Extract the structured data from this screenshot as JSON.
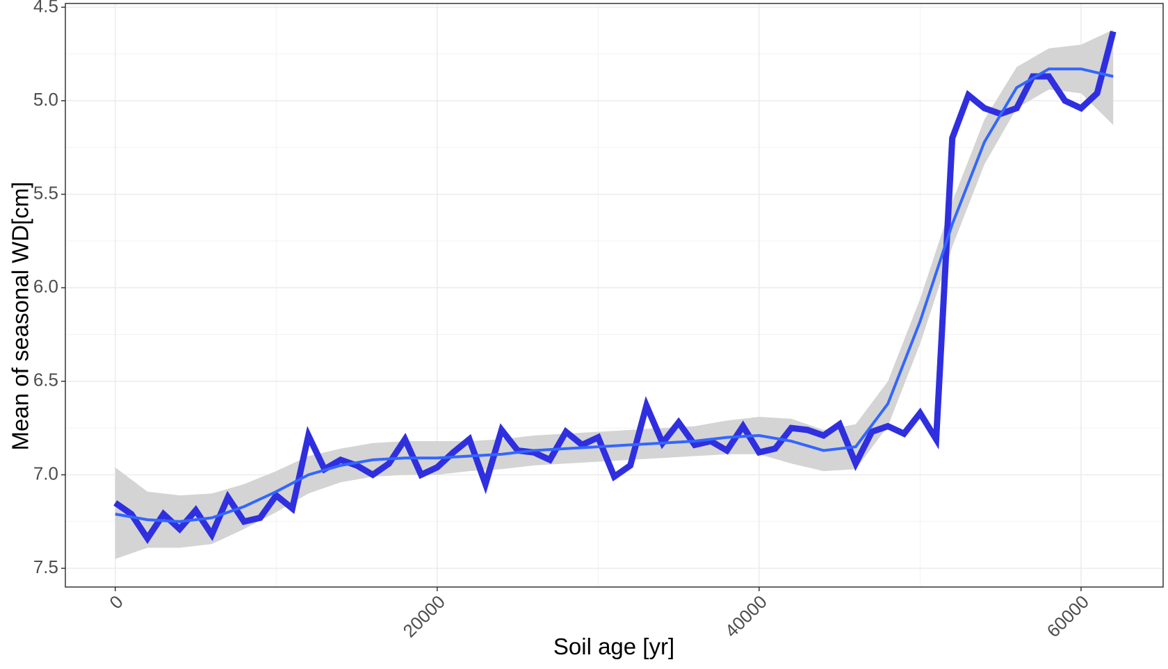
{
  "chart_data": {
    "type": "line",
    "x_label": "Soil age [yr]",
    "y_label": "Mean of seasonal WD[cm]",
    "x": [
      0,
      1000,
      2000,
      3000,
      4000,
      5000,
      6000,
      7000,
      8000,
      9000,
      10000,
      11000,
      12000,
      13000,
      14000,
      15000,
      16000,
      17000,
      18000,
      19000,
      20000,
      21000,
      22000,
      23000,
      24000,
      25000,
      26000,
      27000,
      28000,
      29000,
      30000,
      31000,
      32000,
      33000,
      34000,
      35000,
      36000,
      37000,
      38000,
      39000,
      40000,
      41000,
      42000,
      43000,
      44000,
      45000,
      46000,
      47000,
      48000,
      49000,
      50000,
      51000,
      52000,
      53000,
      54000,
      55000,
      56000,
      57000,
      58000,
      59000,
      60000,
      61000,
      62000
    ],
    "series": [
      {
        "color": "#2f2fe0",
        "values": [
          7.15,
          7.21,
          7.34,
          7.21,
          7.29,
          7.19,
          7.32,
          7.12,
          7.25,
          7.23,
          7.11,
          7.18,
          6.79,
          6.97,
          6.92,
          6.95,
          7.0,
          6.94,
          6.81,
          7.0,
          6.96,
          6.88,
          6.81,
          7.05,
          6.76,
          6.87,
          6.88,
          6.92,
          6.77,
          6.84,
          6.8,
          7.01,
          6.95,
          6.63,
          6.83,
          6.72,
          6.84,
          6.82,
          6.87,
          6.74,
          6.88,
          6.86,
          6.75,
          6.76,
          6.79,
          6.73,
          6.94,
          6.77,
          6.74,
          6.78,
          6.67,
          6.81,
          5.2,
          4.97,
          5.04,
          5.07,
          5.04,
          4.87,
          4.87,
          5.0,
          5.04,
          4.96,
          4.63
        ]
      }
    ],
    "smooth": {
      "color": "#3366ff",
      "band_color": "#d4d4d4",
      "x": [
        0,
        2000,
        4000,
        6000,
        8000,
        10000,
        12000,
        14000,
        16000,
        18000,
        20000,
        22000,
        24000,
        26000,
        28000,
        30000,
        32000,
        34000,
        36000,
        38000,
        40000,
        42000,
        44000,
        46000,
        48000,
        50000,
        52000,
        54000,
        56000,
        58000,
        60000,
        62000
      ],
      "values": [
        7.21,
        7.24,
        7.25,
        7.23,
        7.17,
        7.09,
        7.0,
        6.95,
        6.92,
        6.91,
        6.91,
        6.9,
        6.89,
        6.87,
        6.86,
        6.85,
        6.84,
        6.83,
        6.82,
        6.8,
        6.79,
        6.82,
        6.87,
        6.85,
        6.62,
        6.18,
        5.66,
        5.22,
        4.93,
        4.83,
        4.83,
        4.87
      ],
      "lower": [
        6.96,
        7.09,
        7.11,
        7.1,
        7.05,
        6.98,
        6.9,
        6.86,
        6.83,
        6.82,
        6.82,
        6.82,
        6.81,
        6.79,
        6.78,
        6.77,
        6.76,
        6.75,
        6.74,
        6.71,
        6.69,
        6.7,
        6.76,
        6.73,
        6.5,
        6.06,
        5.54,
        5.1,
        4.82,
        4.72,
        4.7,
        4.62
      ],
      "upper": [
        7.45,
        7.39,
        7.39,
        7.37,
        7.29,
        7.2,
        7.1,
        7.04,
        7.01,
        7.0,
        7.0,
        6.98,
        6.97,
        6.95,
        6.94,
        6.93,
        6.92,
        6.91,
        6.9,
        6.89,
        6.89,
        6.94,
        6.98,
        6.97,
        6.74,
        6.3,
        5.78,
        5.34,
        5.04,
        4.94,
        4.96,
        5.13
      ]
    },
    "xlim": [
      -3100,
      65100
    ],
    "ylim": [
      4.48,
      7.6
    ],
    "y_reversed": true,
    "xticks": [
      0,
      20000,
      40000,
      60000
    ],
    "yticks": [
      {
        "value": 4.5,
        "label": "4.5"
      },
      {
        "value": 5.0,
        "label": "5.0"
      },
      {
        "value": 5.5,
        "label": "5.5"
      },
      {
        "value": 6.0,
        "label": "6.0"
      },
      {
        "value": 6.5,
        "label": "6.5"
      },
      {
        "value": 7.0,
        "label": "7.0"
      },
      {
        "value": 7.5,
        "label": "7.5"
      }
    ],
    "xminor": [
      10000,
      30000,
      50000
    ],
    "yminor": [
      4.75,
      5.25,
      5.75,
      6.25,
      6.75,
      7.25
    ],
    "grid": true
  }
}
